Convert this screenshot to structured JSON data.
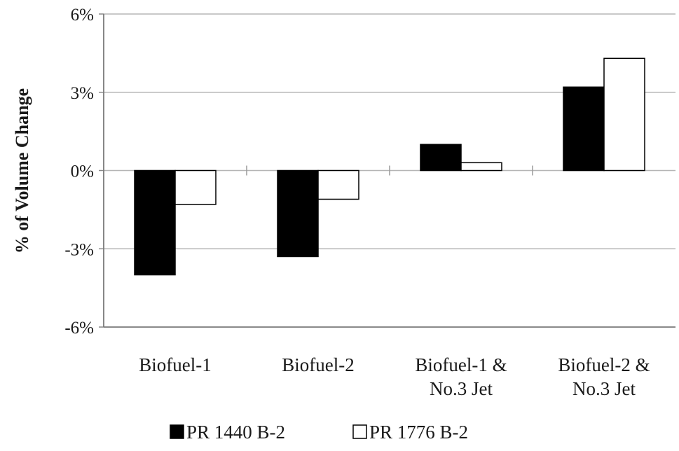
{
  "chart_data": {
    "type": "bar",
    "title": "",
    "xlabel": "",
    "ylabel": "% of Volume Change",
    "ylim": [
      -6,
      6
    ],
    "yticks": [
      -6,
      -3,
      0,
      3,
      6
    ],
    "ytick_labels": [
      "-6%",
      "-3%",
      "0%",
      "3%",
      "6%"
    ],
    "grid": true,
    "legend_position": "bottom",
    "categories": [
      [
        "Biofuel-1"
      ],
      [
        "Biofuel-2"
      ],
      [
        "Biofuel-1 &",
        "No.3 Jet"
      ],
      [
        "Biofuel-2 &",
        "No.3 Jet"
      ]
    ],
    "series": [
      {
        "name": "PR 1440 B-2",
        "color": "#000000",
        "values": [
          -4.0,
          -3.3,
          1.0,
          3.2
        ]
      },
      {
        "name": "PR 1776 B-2",
        "color": "#ffffff",
        "values": [
          -1.3,
          -1.1,
          0.3,
          4.3
        ]
      }
    ]
  }
}
